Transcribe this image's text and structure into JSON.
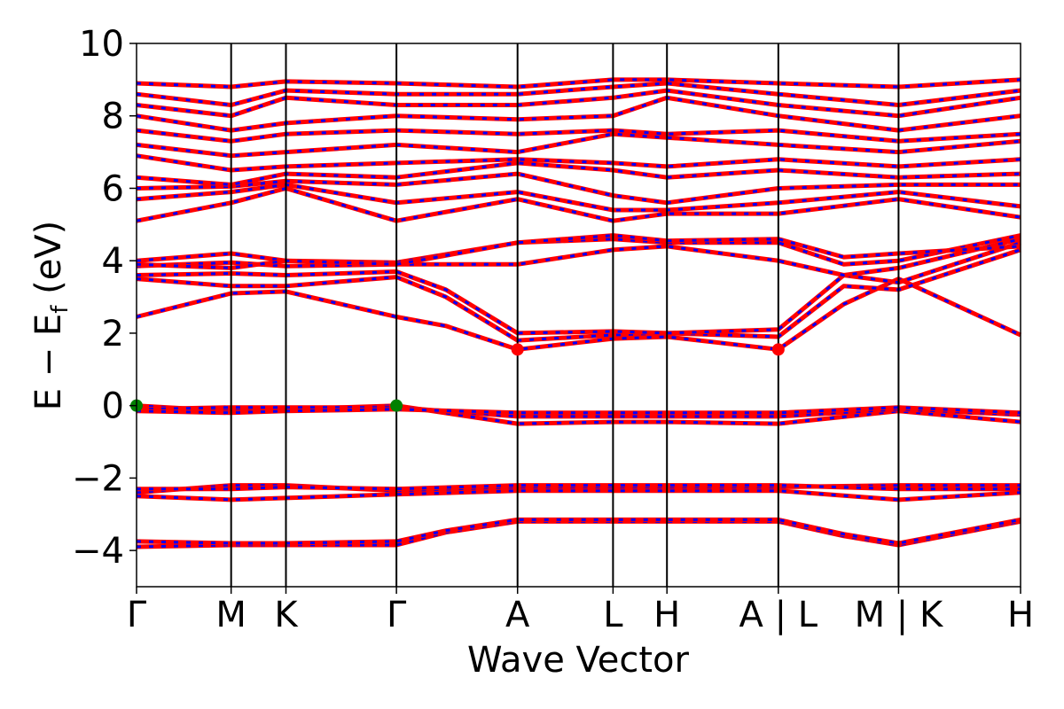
{
  "chart_data": {
    "type": "line",
    "title": "",
    "xlabel": "Wave Vector",
    "ylabel": "E − E",
    "ylabel_sub": "f",
    "ylabel_unit": " (eV)",
    "ylim": [
      -5,
      10
    ],
    "yticks": [
      {
        "value": -4,
        "label": "−4"
      },
      {
        "value": -2,
        "label": "−2"
      },
      {
        "value": 0,
        "label": "0"
      },
      {
        "value": 2,
        "label": "2"
      },
      {
        "value": 4,
        "label": "4"
      },
      {
        "value": 6,
        "label": "6"
      },
      {
        "value": 8,
        "label": "8"
      },
      {
        "value": 10,
        "label": "10"
      }
    ],
    "xlim": [
      0,
      1
    ],
    "kpoints": [
      {
        "x": 0.0,
        "label": "Γ"
      },
      {
        "x": 0.107,
        "label": "M"
      },
      {
        "x": 0.169,
        "label": "K"
      },
      {
        "x": 0.294,
        "label": "Γ"
      },
      {
        "x": 0.431,
        "label": "A"
      },
      {
        "x": 0.539,
        "label": "L"
      },
      {
        "x": 0.6,
        "label": "H"
      },
      {
        "x": 0.726,
        "label": "A | L"
      },
      {
        "x": 0.862,
        "label": "M | K"
      },
      {
        "x": 1.0,
        "label": "H"
      }
    ],
    "band_colors": {
      "spin_up": "#ff0000",
      "spin_down": "#0000ff"
    },
    "bands": [
      {
        "name": "",
        "x": [
          0,
          0.107,
          0.169,
          0.294,
          0.35,
          0.431,
          0.539,
          0.6,
          0.726,
          0.8,
          0.862,
          1.0
        ],
        "y": [
          -3.9,
          -3.85,
          -3.85,
          -3.85,
          -3.5,
          -3.2,
          -3.2,
          -3.2,
          -3.2,
          -3.6,
          -3.85,
          -3.2
        ]
      },
      {
        "name": "",
        "x": [
          0,
          0.107,
          0.169,
          0.294,
          0.35,
          0.431,
          0.539,
          0.6,
          0.726,
          0.8,
          0.862,
          1.0
        ],
        "y": [
          -3.75,
          -3.8,
          -3.8,
          -3.75,
          -3.45,
          -3.15,
          -3.15,
          -3.15,
          -3.15,
          -3.55,
          -3.8,
          -3.15
        ]
      },
      {
        "name": "",
        "x": [
          0,
          0.107,
          0.169,
          0.294,
          0.431,
          0.539,
          0.6,
          0.726,
          0.862,
          1.0
        ],
        "y": [
          -2.5,
          -2.6,
          -2.55,
          -2.45,
          -2.35,
          -2.35,
          -2.35,
          -2.35,
          -2.6,
          -2.4
        ]
      },
      {
        "name": "",
        "x": [
          0,
          0.107,
          0.169,
          0.294,
          0.431,
          0.539,
          0.6,
          0.726,
          0.862,
          1.0
        ],
        "y": [
          -2.4,
          -2.2,
          -2.2,
          -2.35,
          -2.25,
          -2.25,
          -2.25,
          -2.25,
          -2.2,
          -2.2
        ]
      },
      {
        "name": "",
        "x": [
          0,
          0.107,
          0.169,
          0.294,
          0.431,
          0.539,
          0.6,
          0.726,
          0.862,
          1.0
        ],
        "y": [
          -2.3,
          -2.3,
          -2.25,
          -2.3,
          -2.2,
          -2.2,
          -2.2,
          -2.2,
          -2.3,
          -2.3
        ]
      },
      {
        "name": "",
        "x": [
          0,
          0.107,
          0.169,
          0.294,
          0.431,
          0.539,
          0.6,
          0.726,
          0.862,
          1.0
        ],
        "y": [
          0.0,
          -0.15,
          -0.1,
          0.0,
          -0.5,
          -0.45,
          -0.45,
          -0.5,
          -0.15,
          -0.45
        ]
      },
      {
        "name": "",
        "x": [
          0,
          0.107,
          0.169,
          0.294,
          0.431,
          0.539,
          0.6,
          0.726,
          0.862,
          1.0
        ],
        "y": [
          -0.1,
          -0.05,
          -0.05,
          -0.05,
          -0.3,
          -0.3,
          -0.3,
          -0.3,
          -0.1,
          -0.25
        ]
      },
      {
        "name": "",
        "x": [
          0,
          0.107,
          0.169,
          0.294,
          0.431,
          0.539,
          0.6,
          0.726,
          0.862,
          1.0
        ],
        "y": [
          -0.15,
          -0.2,
          -0.15,
          -0.1,
          -0.2,
          -0.2,
          -0.2,
          -0.2,
          -0.05,
          -0.2
        ]
      },
      {
        "name": "",
        "x": [
          0,
          0.107,
          0.169,
          0.294,
          0.35,
          0.431,
          0.539,
          0.6,
          0.726,
          0.8,
          0.862,
          1.0
        ],
        "y": [
          2.45,
          3.1,
          3.15,
          2.45,
          2.2,
          1.55,
          1.85,
          1.9,
          1.55,
          2.8,
          3.5,
          1.95
        ]
      },
      {
        "name": "",
        "x": [
          0,
          0.107,
          0.169,
          0.294,
          0.35,
          0.431,
          0.539,
          0.6,
          0.726,
          0.8,
          0.862,
          1.0
        ],
        "y": [
          3.5,
          3.3,
          3.3,
          3.55,
          3.0,
          1.8,
          1.95,
          2.0,
          1.9,
          3.3,
          3.2,
          4.3
        ]
      },
      {
        "name": "",
        "x": [
          0,
          0.107,
          0.169,
          0.294,
          0.35,
          0.431,
          0.539,
          0.6,
          0.726,
          0.8,
          0.862,
          1.0
        ],
        "y": [
          3.6,
          3.65,
          3.6,
          3.7,
          3.2,
          2.0,
          2.05,
          2.0,
          2.1,
          3.6,
          3.4,
          4.5
        ]
      },
      {
        "name": "",
        "x": [
          0,
          0.107,
          0.169,
          0.294,
          0.431,
          0.539,
          0.6,
          0.726,
          0.8,
          0.862,
          1.0
        ],
        "y": [
          3.85,
          3.95,
          3.85,
          3.9,
          3.9,
          4.3,
          4.4,
          4.0,
          3.6,
          3.8,
          4.6
        ]
      },
      {
        "name": "",
        "x": [
          0,
          0.107,
          0.169,
          0.294,
          0.431,
          0.539,
          0.6,
          0.726,
          0.8,
          0.862,
          1.0
        ],
        "y": [
          4.0,
          4.2,
          4.0,
          3.95,
          4.5,
          4.6,
          4.5,
          4.5,
          3.9,
          4.0,
          4.7
        ]
      },
      {
        "name": "",
        "x": [
          0,
          0.107,
          0.169,
          0.294,
          0.431,
          0.539,
          0.6,
          0.726,
          0.8,
          0.862,
          1.0
        ],
        "y": [
          3.9,
          3.8,
          4.0,
          3.9,
          4.5,
          4.7,
          4.55,
          4.6,
          4.1,
          4.2,
          4.4
        ]
      },
      {
        "name": "",
        "x": [
          0,
          0.107,
          0.169,
          0.294,
          0.431,
          0.539,
          0.6,
          0.726,
          0.862,
          1.0
        ],
        "y": [
          5.1,
          5.6,
          6.0,
          5.1,
          5.7,
          5.1,
          5.3,
          5.3,
          5.7,
          5.2
        ]
      },
      {
        "name": "",
        "x": [
          0,
          0.107,
          0.169,
          0.294,
          0.431,
          0.539,
          0.6,
          0.726,
          0.862,
          1.0
        ],
        "y": [
          5.7,
          5.9,
          6.1,
          5.6,
          5.9,
          5.4,
          5.4,
          5.6,
          5.9,
          5.5
        ]
      },
      {
        "name": "",
        "x": [
          0,
          0.107,
          0.169,
          0.294,
          0.431,
          0.539,
          0.6,
          0.726,
          0.862,
          1.0
        ],
        "y": [
          6.0,
          6.05,
          6.2,
          6.1,
          6.4,
          5.8,
          5.6,
          6.0,
          6.1,
          6.1
        ]
      },
      {
        "name": "",
        "x": [
          0,
          0.107,
          0.169,
          0.294,
          0.431,
          0.539,
          0.6,
          0.726,
          0.862,
          1.0
        ],
        "y": [
          6.3,
          6.1,
          6.4,
          6.3,
          6.7,
          6.5,
          6.3,
          6.5,
          6.3,
          6.4
        ]
      },
      {
        "name": "",
        "x": [
          0,
          0.107,
          0.169,
          0.294,
          0.431,
          0.539,
          0.6,
          0.726,
          0.862,
          1.0
        ],
        "y": [
          6.9,
          6.5,
          6.6,
          6.7,
          6.8,
          6.7,
          6.6,
          6.8,
          6.6,
          6.8
        ]
      },
      {
        "name": "",
        "x": [
          0,
          0.107,
          0.169,
          0.294,
          0.431,
          0.539,
          0.6,
          0.726,
          0.862,
          1.0
        ],
        "y": [
          7.2,
          6.9,
          7.0,
          7.2,
          7.0,
          7.5,
          7.4,
          7.2,
          7.0,
          7.3
        ]
      },
      {
        "name": "",
        "x": [
          0,
          0.107,
          0.169,
          0.294,
          0.431,
          0.539,
          0.6,
          0.726,
          0.862,
          1.0
        ],
        "y": [
          7.6,
          7.3,
          7.5,
          7.6,
          7.5,
          7.6,
          7.5,
          7.6,
          7.3,
          7.5
        ]
      },
      {
        "name": "",
        "x": [
          0,
          0.107,
          0.169,
          0.294,
          0.431,
          0.539,
          0.6,
          0.726,
          0.862,
          1.0
        ],
        "y": [
          8.0,
          7.6,
          7.8,
          8.0,
          7.9,
          8.0,
          8.5,
          8.0,
          7.6,
          8.0
        ]
      },
      {
        "name": "",
        "x": [
          0,
          0.107,
          0.169,
          0.294,
          0.431,
          0.539,
          0.6,
          0.726,
          0.862,
          1.0
        ],
        "y": [
          8.3,
          8.0,
          8.5,
          8.3,
          8.3,
          8.5,
          8.7,
          8.3,
          8.0,
          8.5
        ]
      },
      {
        "name": "",
        "x": [
          0,
          0.107,
          0.169,
          0.294,
          0.431,
          0.539,
          0.6,
          0.726,
          0.862,
          1.0
        ],
        "y": [
          8.6,
          8.3,
          8.7,
          8.6,
          8.6,
          8.8,
          8.9,
          8.6,
          8.3,
          8.7
        ]
      },
      {
        "name": "",
        "x": [
          0,
          0.107,
          0.169,
          0.294,
          0.431,
          0.539,
          0.6,
          0.726,
          0.862,
          1.0
        ],
        "y": [
          8.9,
          8.8,
          8.95,
          8.9,
          8.8,
          9.0,
          9.0,
          8.9,
          8.8,
          9.0
        ]
      }
    ],
    "markers": [
      {
        "x": 0.0,
        "y": 0.0,
        "color": "#008000"
      },
      {
        "x": 0.294,
        "y": 0.0,
        "color": "#008000"
      },
      {
        "x": 0.431,
        "y": 1.55,
        "color": "#ff0000"
      },
      {
        "x": 0.726,
        "y": 1.55,
        "color": "#ff0000"
      }
    ],
    "grid": false,
    "legend": "none"
  }
}
